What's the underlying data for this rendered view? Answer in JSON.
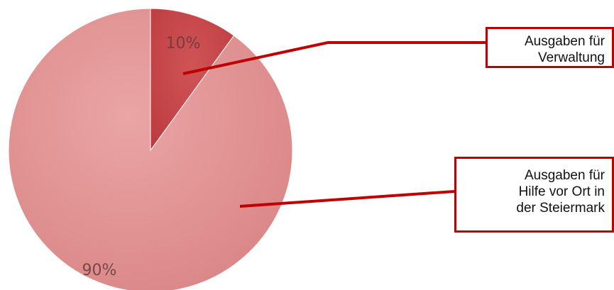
{
  "chart_data": {
    "type": "pie",
    "slices": [
      {
        "label_lines": [
          "Ausgaben für",
          "Verwaltung"
        ],
        "value": 10,
        "percent_label": "10%",
        "color": "#c84446"
      },
      {
        "label_lines": [
          "Ausgaben für",
          "Hilfe vor Ort in",
          "der Steiermark"
        ],
        "value": 90,
        "percent_label": "90%",
        "color": "#e08f8f"
      }
    ],
    "start_angle": "12 o'clock",
    "direction": "clockwise",
    "legend": "callout boxes on the right",
    "accent_color": "#c00000"
  }
}
